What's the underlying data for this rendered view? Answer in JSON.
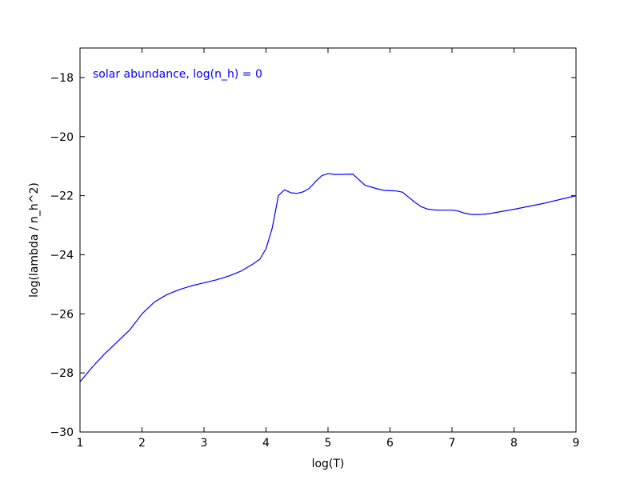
{
  "chart_data": {
    "type": "line",
    "title": "",
    "xlabel": "log(T)",
    "ylabel": "log(lambda / n_h^2)",
    "xlim": [
      1,
      9
    ],
    "ylim": [
      -30,
      -17
    ],
    "xticks": [
      1,
      2,
      3,
      4,
      5,
      6,
      7,
      8,
      9
    ],
    "yticks": [
      -30,
      -28,
      -26,
      -24,
      -22,
      -20,
      -18
    ],
    "xtick_labels": [
      "1",
      "2",
      "3",
      "4",
      "5",
      "6",
      "7",
      "8",
      "9"
    ],
    "ytick_labels": [
      "−30",
      "−28",
      "−26",
      "−24",
      "−22",
      "−20",
      "−18"
    ],
    "grid": false,
    "annotation": {
      "text": "solar abundance, log(n_h) = 0",
      "color": "#0000ff"
    },
    "series": [
      {
        "color": "#0000ff",
        "x": [
          1.0,
          1.2,
          1.4,
          1.6,
          1.8,
          2.0,
          2.2,
          2.4,
          2.6,
          2.8,
          3.0,
          3.2,
          3.4,
          3.6,
          3.8,
          3.9,
          4.0,
          4.1,
          4.2,
          4.3,
          4.4,
          4.5,
          4.6,
          4.7,
          4.8,
          4.9,
          5.0,
          5.1,
          5.2,
          5.4,
          5.6,
          5.8,
          5.9,
          6.0,
          6.1,
          6.2,
          6.3,
          6.4,
          6.5,
          6.6,
          6.7,
          6.8,
          7.0,
          7.1,
          7.2,
          7.3,
          7.4,
          7.5,
          7.6,
          8.0,
          8.5,
          9.0
        ],
        "y": [
          -28.3,
          -27.8,
          -27.35,
          -26.95,
          -26.55,
          -26.0,
          -25.6,
          -25.35,
          -25.18,
          -25.05,
          -24.95,
          -24.85,
          -24.72,
          -24.55,
          -24.3,
          -24.15,
          -23.8,
          -23.1,
          -22.0,
          -21.8,
          -21.9,
          -21.92,
          -21.87,
          -21.75,
          -21.52,
          -21.32,
          -21.25,
          -21.28,
          -21.28,
          -21.27,
          -21.65,
          -21.77,
          -21.82,
          -21.83,
          -21.84,
          -21.88,
          -22.05,
          -22.22,
          -22.37,
          -22.45,
          -22.48,
          -22.49,
          -22.49,
          -22.52,
          -22.59,
          -22.63,
          -22.64,
          -22.63,
          -22.61,
          -22.46,
          -22.25,
          -22.0
        ]
      }
    ]
  }
}
